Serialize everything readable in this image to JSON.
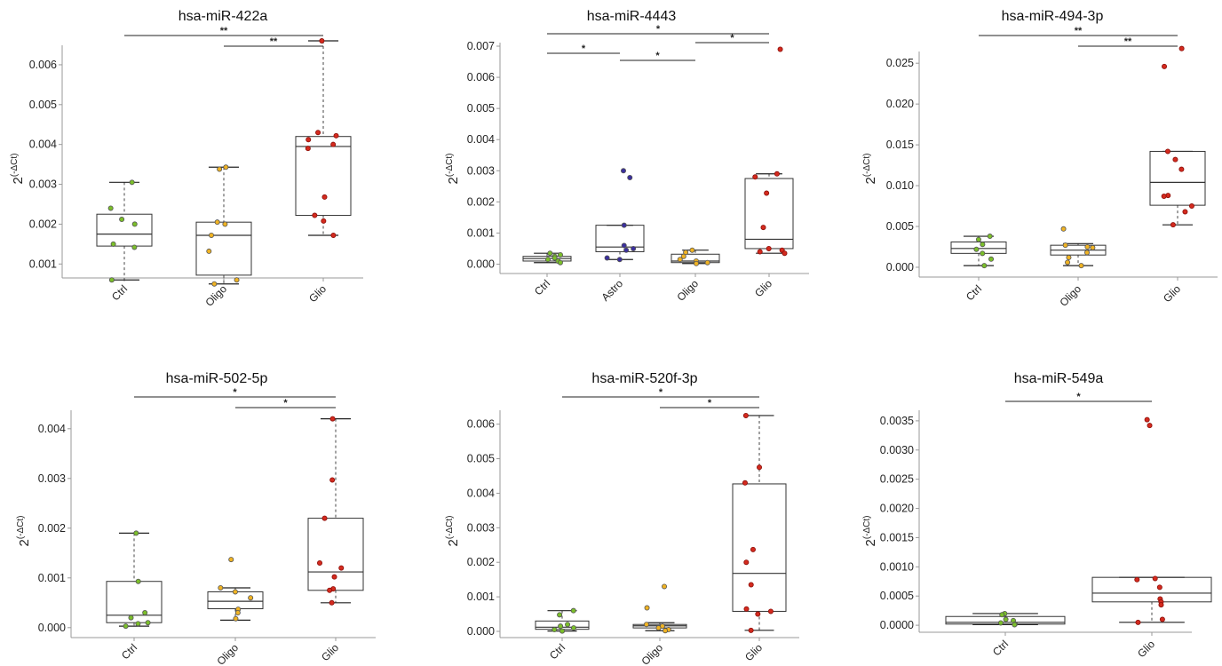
{
  "colors": {
    "Ctrl": "#7bbf2a",
    "Astro": "#3b2f9e",
    "Oligo": "#f0b323",
    "Glio": "#d42a1e"
  },
  "y_label": "2",
  "y_label_sup": "(-ΔCt)",
  "chart_data": [
    {
      "type": "box",
      "title": "hsa-miR-422a",
      "categories": [
        "Ctrl",
        "Oligo",
        "Glio"
      ],
      "yticks": [
        "0.001",
        "0.002",
        "0.003",
        "0.004",
        "0.005",
        "0.006"
      ],
      "ylim": [
        0.0007,
        0.0064
      ],
      "boxes": [
        {
          "min": 0.0006,
          "q1": 0.00145,
          "median": 0.00175,
          "q3": 0.00225,
          "max": 0.00305
        },
        {
          "min": 0.0005,
          "q1": 0.00072,
          "median": 0.00172,
          "q3": 0.00205,
          "max": 0.00343
        },
        {
          "min": 0.00172,
          "q1": 0.00222,
          "median": 0.00395,
          "q3": 0.0042,
          "max": 0.0066
        }
      ],
      "points": [
        [
          0.00305,
          0.0024,
          0.00212,
          0.002,
          0.0015,
          0.00142,
          0.0006
        ],
        [
          0.00343,
          0.00338,
          0.00205,
          0.002,
          0.00172,
          0.00132,
          0.0006,
          0.0005
        ],
        [
          0.0066,
          0.0043,
          0.00422,
          0.00412,
          0.004,
          0.0039,
          0.00268,
          0.00222,
          0.00208,
          0.00172
        ]
      ],
      "significance": [
        {
          "from": "Ctrl",
          "to": "Glio",
          "label": "**"
        },
        {
          "from": "Oligo",
          "to": "Glio",
          "label": "**"
        }
      ]
    },
    {
      "type": "box",
      "title": "hsa-miR-4443",
      "categories": [
        "Ctrl",
        "Astro",
        "Oligo",
        "Glio"
      ],
      "yticks": [
        "0.000",
        "0.001",
        "0.002",
        "0.003",
        "0.004",
        "0.005",
        "0.006",
        "0.007"
      ],
      "ylim": [
        0,
        0.007
      ],
      "boxes": [
        {
          "min": 5e-05,
          "q1": 0.0001,
          "median": 0.00018,
          "q3": 0.00025,
          "max": 0.00035
        },
        {
          "min": 0.00015,
          "q1": 0.0004,
          "median": 0.00055,
          "q3": 0.00125,
          "max": 0.00125
        },
        {
          "min": 2e-05,
          "q1": 5e-05,
          "median": 0.0001,
          "q3": 0.00032,
          "max": 0.00045
        },
        {
          "min": 0.00035,
          "q1": 0.0005,
          "median": 0.0008,
          "q3": 0.00275,
          "max": 0.0029
        }
      ],
      "points": [
        [
          0.00035,
          0.0003,
          0.00025,
          0.0002,
          0.00015,
          0.0001,
          5e-05
        ],
        [
          0.003,
          0.00278,
          0.00125,
          0.0006,
          0.0005,
          0.00045,
          0.0002,
          0.00015
        ],
        [
          0.00045,
          0.00038,
          0.00025,
          0.00015,
          0.0001,
          5e-05,
          2e-05
        ],
        [
          0.0069,
          0.0029,
          0.0028,
          0.00228,
          0.00118,
          0.0005,
          0.00045,
          0.0004,
          0.00035
        ]
      ],
      "significance": [
        {
          "from": "Ctrl",
          "to": "Glio",
          "label": "*"
        },
        {
          "from": "Oligo",
          "to": "Glio",
          "label": "*"
        },
        {
          "from": "Ctrl",
          "to": "Astro",
          "label": "*"
        },
        {
          "from": "Astro",
          "to": "Oligo",
          "label": "*"
        }
      ]
    },
    {
      "type": "box",
      "title": "hsa-miR-494-3p",
      "categories": [
        "Ctrl",
        "Oligo",
        "Glio"
      ],
      "yticks": [
        "0.000",
        "0.005",
        "0.010",
        "0.015",
        "0.020",
        "0.025"
      ],
      "ylim": [
        0,
        0.026
      ],
      "boxes": [
        {
          "min": 0.0002,
          "q1": 0.0017,
          "median": 0.0023,
          "q3": 0.0031,
          "max": 0.0038
        },
        {
          "min": 0.0002,
          "q1": 0.0015,
          "median": 0.0021,
          "q3": 0.0027,
          "max": 0.0029
        },
        {
          "min": 0.0052,
          "q1": 0.0076,
          "median": 0.0104,
          "q3": 0.0142,
          "max": 0.0142
        }
      ],
      "points": [
        [
          0.0038,
          0.0034,
          0.0028,
          0.0022,
          0.0017,
          0.001,
          0.0002
        ],
        [
          0.0047,
          0.0027,
          0.0025,
          0.0024,
          0.0018,
          0.0012,
          0.0006,
          0.0002
        ],
        [
          0.0268,
          0.0246,
          0.0142,
          0.0132,
          0.012,
          0.0088,
          0.0087,
          0.0075,
          0.0068,
          0.0052
        ]
      ],
      "significance": [
        {
          "from": "Ctrl",
          "to": "Glio",
          "label": "**"
        },
        {
          "from": "Oligo",
          "to": "Glio",
          "label": "**"
        }
      ]
    },
    {
      "type": "box",
      "title": "hsa-miR-502-5p",
      "categories": [
        "Ctrl",
        "Oligo",
        "Glio"
      ],
      "yticks": [
        "0.000",
        "0.001",
        "0.002",
        "0.003",
        "0.004"
      ],
      "ylim": [
        0,
        0.0042
      ],
      "boxes": [
        {
          "min": 3e-05,
          "q1": 0.0001,
          "median": 0.00025,
          "q3": 0.00093,
          "max": 0.0019
        },
        {
          "min": 0.00015,
          "q1": 0.00038,
          "median": 0.00053,
          "q3": 0.00072,
          "max": 0.0008
        },
        {
          "min": 0.0005,
          "q1": 0.00075,
          "median": 0.00112,
          "q3": 0.0022,
          "max": 0.0042
        }
      ],
      "points": [
        [
          0.0019,
          0.00093,
          0.0003,
          0.0002,
          0.0001,
          8e-05,
          3e-05
        ],
        [
          0.00137,
          0.0008,
          0.00072,
          0.0006,
          0.00037,
          0.0003,
          0.00018
        ],
        [
          0.0042,
          0.00297,
          0.0022,
          0.0013,
          0.0012,
          0.00102,
          0.00078,
          0.00075,
          0.0005
        ]
      ],
      "significance": [
        {
          "from": "Ctrl",
          "to": "Glio",
          "label": "*"
        },
        {
          "from": "Oligo",
          "to": "Glio",
          "label": "*"
        }
      ]
    },
    {
      "type": "box",
      "title": "hsa-miR-520f-3p",
      "categories": [
        "Ctrl",
        "Oligo",
        "Glio"
      ],
      "yticks": [
        "0.000",
        "0.001",
        "0.002",
        "0.003",
        "0.004",
        "0.005",
        "0.006"
      ],
      "ylim": [
        0,
        0.0062
      ],
      "boxes": [
        {
          "min": 1e-05,
          "q1": 6e-05,
          "median": 0.00012,
          "q3": 0.0003,
          "max": 0.0006
        },
        {
          "min": 2e-05,
          "q1": 0.0001,
          "median": 0.00016,
          "q3": 0.0002,
          "max": 0.00025
        },
        {
          "min": 3e-05,
          "q1": 0.00058,
          "median": 0.00168,
          "q3": 0.00427,
          "max": 0.00625
        }
      ],
      "points": [
        [
          0.0006,
          0.00048,
          0.0002,
          0.00015,
          0.0001,
          5e-05,
          1e-05
        ],
        [
          0.0013,
          0.00068,
          0.0002,
          0.00015,
          0.0001,
          5e-05,
          2e-05
        ],
        [
          0.00625,
          0.00475,
          0.0043,
          0.00237,
          0.002,
          0.00135,
          0.00065,
          0.00058,
          0.0005,
          3e-05
        ]
      ],
      "significance": [
        {
          "from": "Ctrl",
          "to": "Glio",
          "label": "*"
        },
        {
          "from": "Oligo",
          "to": "Glio",
          "label": "*"
        }
      ]
    },
    {
      "type": "box",
      "title": "hsa-miR-549a",
      "categories": [
        "Ctrl",
        "Glio"
      ],
      "yticks": [
        "0.0000",
        "0.0005",
        "0.0010",
        "0.0015",
        "0.0020",
        "0.0025",
        "0.0030",
        "0.0035"
      ],
      "ylim": [
        0,
        0.0035
      ],
      "boxes": [
        {
          "min": 1e-05,
          "q1": 2e-05,
          "median": 5e-05,
          "q3": 0.00015,
          "max": 0.0002
        },
        {
          "min": 5e-05,
          "q1": 0.0004,
          "median": 0.00055,
          "q3": 0.00082,
          "max": 0.00082
        }
      ],
      "points": [
        [
          0.0002,
          0.00018,
          0.0001,
          8e-05,
          4e-05,
          2e-05,
          1e-05
        ],
        [
          0.00352,
          0.00342,
          0.0008,
          0.00078,
          0.00065,
          0.00045,
          0.0004,
          0.00035,
          0.0001,
          5e-05
        ]
      ],
      "significance": [
        {
          "from": "Ctrl",
          "to": "Glio",
          "label": "*"
        }
      ]
    }
  ]
}
